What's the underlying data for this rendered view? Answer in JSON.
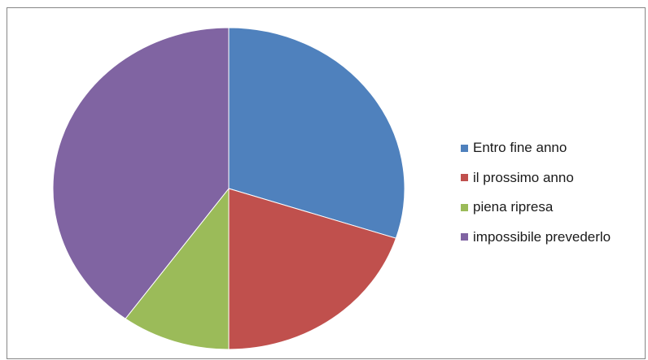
{
  "chart_data": {
    "type": "pie",
    "title": "",
    "categories": [
      "Entro fine anno",
      "il prossimo anno",
      "piena ripresa",
      "impossibile prevederlo"
    ],
    "values": [
      30,
      20,
      10,
      40
    ],
    "colors": [
      "#4f81bd",
      "#c0504d",
      "#9bbb59",
      "#8064a2"
    ],
    "legend_position": "right",
    "start_angle": "12 o'clock, clockwise"
  }
}
